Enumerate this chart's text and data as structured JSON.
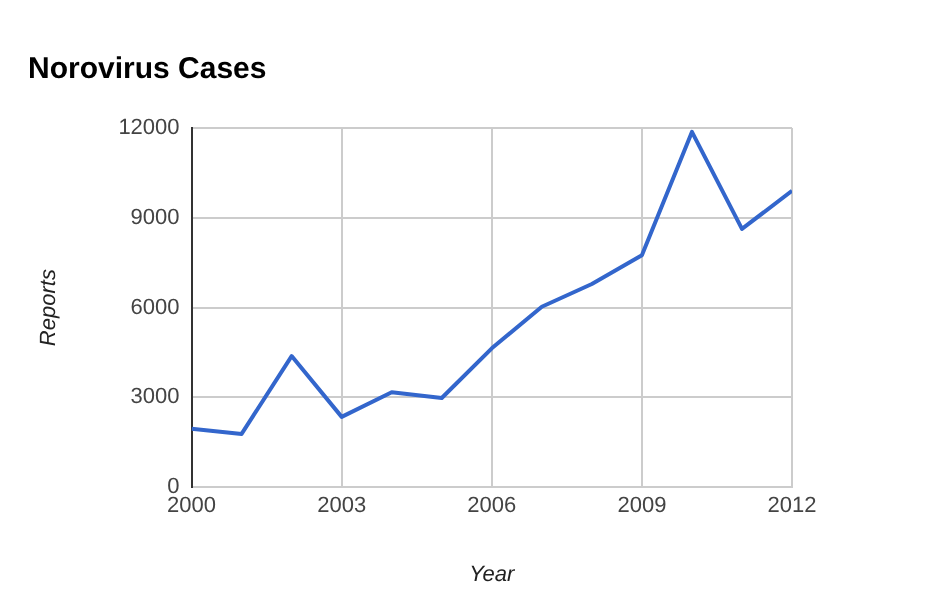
{
  "chart_data": {
    "type": "line",
    "title": "Norovirus Cases",
    "xlabel": "Year",
    "ylabel": "Reports",
    "x": [
      2000,
      2001,
      2002,
      2003,
      2004,
      2005,
      2006,
      2007,
      2008,
      2009,
      2010,
      2011,
      2012
    ],
    "series": [
      {
        "color": "#3366cc",
        "values": [
          1950,
          1780,
          4380,
          2350,
          3170,
          2980,
          4640,
          6030,
          6790,
          7750,
          11870,
          8630,
          9900
        ]
      }
    ],
    "xlim": [
      2000,
      2012
    ],
    "xticks": [
      2000,
      2003,
      2006,
      2009,
      2012
    ],
    "ylim": [
      0,
      12000
    ],
    "yticks": [
      0,
      3000,
      6000,
      9000,
      12000
    ],
    "grid": true,
    "legend": false,
    "marker": "none",
    "line_style": "solid"
  }
}
